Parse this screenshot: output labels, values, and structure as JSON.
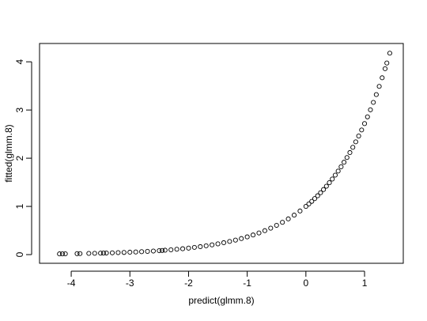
{
  "chart_data": {
    "type": "scatter",
    "xlabel": "predict(glmm.8)",
    "ylabel": "fitted(glmm.8)",
    "x": [
      -4.2,
      -4.15,
      -4.1,
      -3.9,
      -3.85,
      -3.7,
      -3.6,
      -3.5,
      -3.45,
      -3.4,
      -3.3,
      -3.2,
      -3.1,
      -3.0,
      -2.9,
      -2.8,
      -2.7,
      -2.6,
      -2.5,
      -2.45,
      -2.4,
      -2.3,
      -2.2,
      -2.1,
      -2.0,
      -1.9,
      -1.8,
      -1.7,
      -1.6,
      -1.5,
      -1.4,
      -1.3,
      -1.2,
      -1.1,
      -1.0,
      -0.9,
      -0.8,
      -0.7,
      -0.6,
      -0.5,
      -0.4,
      -0.3,
      -0.2,
      -0.1,
      0,
      0.05,
      0.1,
      0.15,
      0.2,
      0.25,
      0.3,
      0.35,
      0.4,
      0.45,
      0.5,
      0.55,
      0.6,
      0.65,
      0.7,
      0.75,
      0.8,
      0.85,
      0.9,
      0.95,
      1.0,
      1.05,
      1.1,
      1.15,
      1.2,
      1.25,
      1.3,
      1.35,
      1.38,
      1.43
    ],
    "values": [
      0.015,
      0.016,
      0.017,
      0.02,
      0.021,
      0.025,
      0.027,
      0.03,
      0.032,
      0.033,
      0.037,
      0.041,
      0.045,
      0.05,
      0.055,
      0.061,
      0.067,
      0.074,
      0.082,
      0.086,
      0.091,
      0.1,
      0.111,
      0.122,
      0.135,
      0.15,
      0.165,
      0.183,
      0.202,
      0.223,
      0.247,
      0.273,
      0.301,
      0.333,
      0.368,
      0.407,
      0.449,
      0.497,
      0.549,
      0.607,
      0.67,
      0.741,
      0.819,
      0.905,
      1,
      1.051,
      1.105,
      1.162,
      1.221,
      1.284,
      1.35,
      1.419,
      1.492,
      1.568,
      1.649,
      1.733,
      1.822,
      1.916,
      2.014,
      2.117,
      2.226,
      2.34,
      2.46,
      2.586,
      2.718,
      2.858,
      3.004,
      3.158,
      3.32,
      3.49,
      3.669,
      3.857,
      3.975,
      4.179
    ],
    "color": "#000000",
    "xlim": [
      -4.54,
      1.66
    ],
    "xticks": [
      -4,
      -3,
      -2,
      -1,
      0,
      1
    ],
    "ylim": [
      -0.18,
      4.38
    ],
    "yticks": [
      0,
      1,
      2,
      3,
      4
    ]
  }
}
